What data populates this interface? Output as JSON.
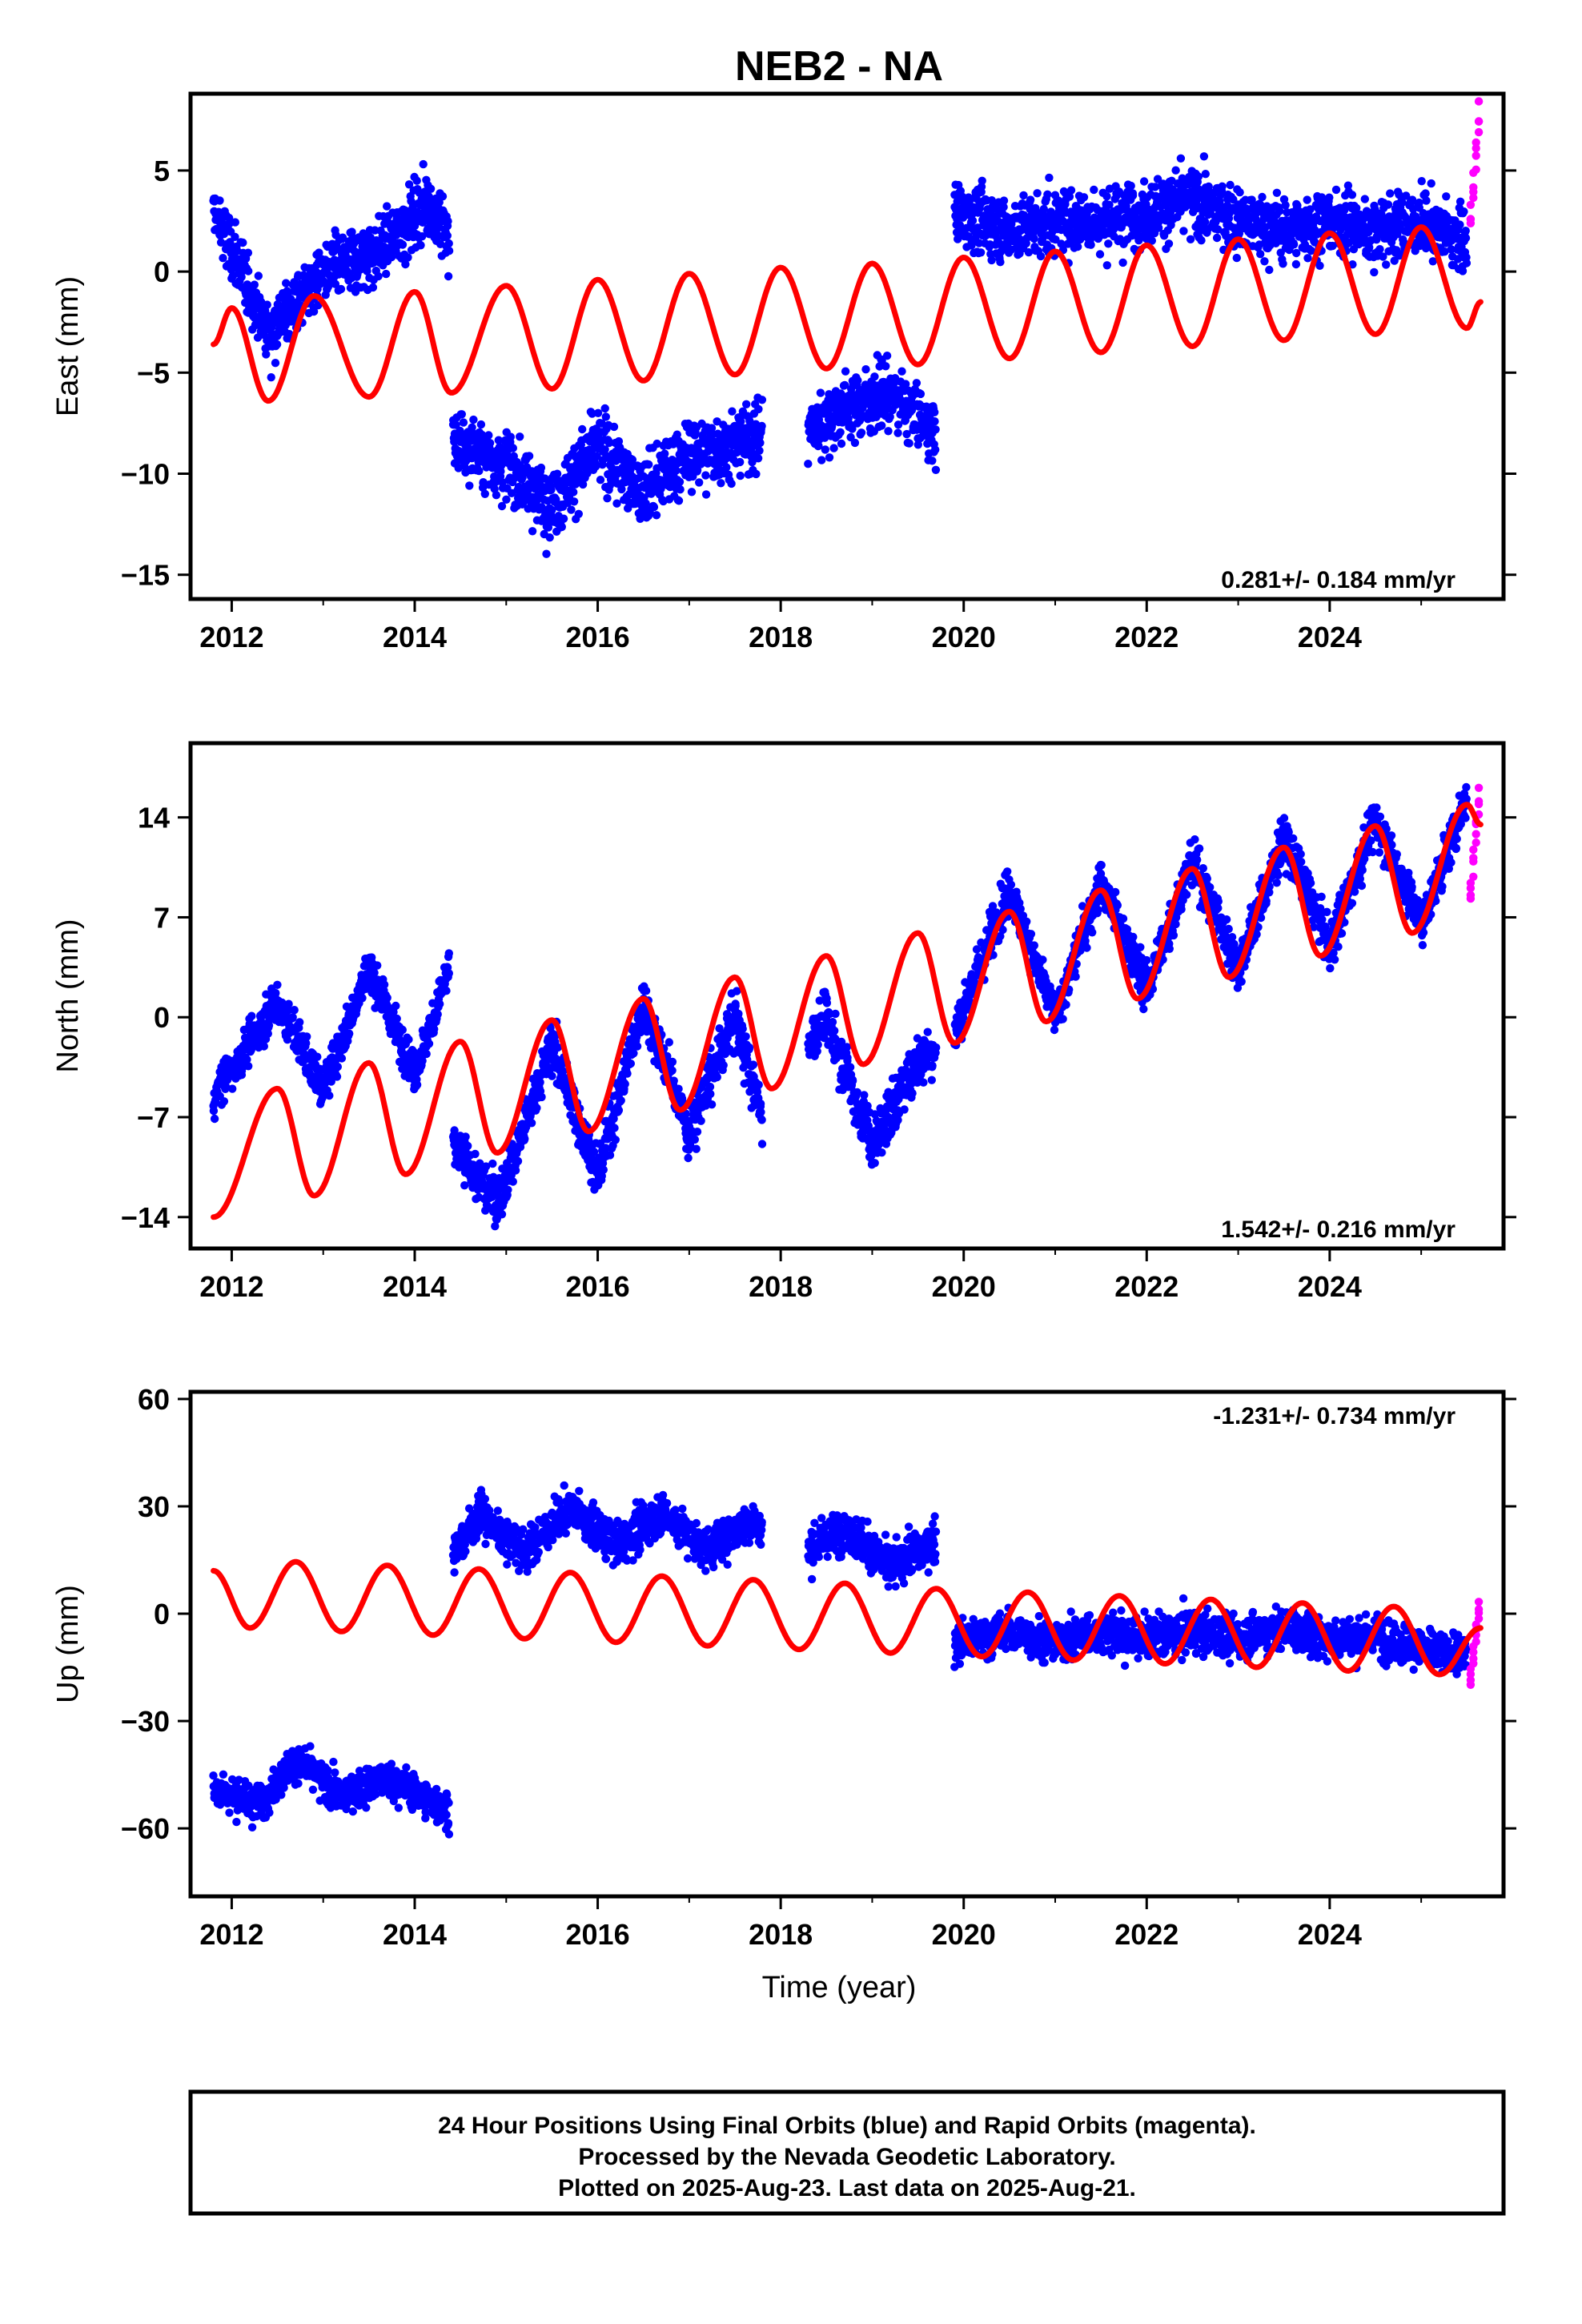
{
  "title": "NEB2 - NA",
  "footer": {
    "lines": [
      "24 Hour Positions Using Final Orbits (blue) and Rapid Orbits (magenta).",
      "Processed by the Nevada Geodetic Laboratory.",
      "Plotted on 2025-Aug-23. Last data on 2025-Aug-21."
    ]
  },
  "colors": {
    "final_orbits": "#0000ff",
    "rapid_orbits": "#ff00ff",
    "model_fit": "#ff0000",
    "frame": "#000000"
  },
  "chart_data": [
    {
      "type": "scatter",
      "component": "east",
      "ylabel": "East (mm)",
      "xlabel": "",
      "xlim": [
        2011.55,
        2025.9
      ],
      "ylim": [
        -16.2,
        8.8
      ],
      "x_ticks": [
        "2012",
        "2014",
        "2016",
        "2018",
        "2020",
        "2022",
        "2024"
      ],
      "y_ticks": [
        "5",
        "0",
        "-5",
        "-10",
        "-15"
      ],
      "rate_text": "0.281+/- 0.184 mm/yr",
      "rate_position": "bottom-right",
      "grid": false,
      "data_span": [
        2011.8,
        2025.63
      ],
      "series": [
        {
          "role": "final_orbits_segment",
          "x": [
            2011.8,
            2012.4,
            2013.0,
            2013.6,
            2014.15,
            2014.38
          ],
          "y": [
            3.0,
            -3.0,
            0.0,
            1.0,
            3.5,
            1.5
          ],
          "seasonal_amplitude": 2.5,
          "scatter": 1.1
        },
        {
          "role": "final_orbits_segment",
          "x": [
            2014.42,
            2015.0,
            2015.5,
            2016.0,
            2016.5,
            2017.0,
            2017.5,
            2017.8
          ],
          "y": [
            -8.5,
            -9.5,
            -11.5,
            -8.5,
            -11.0,
            -9.0,
            -8.5,
            -8.0
          ],
          "seasonal_amplitude": 1.6,
          "scatter": 1.2
        },
        {
          "role": "final_orbits_segment",
          "x": [
            2018.3,
            2018.8,
            2019.2,
            2019.7
          ],
          "y": [
            -7.8,
            -6.5,
            -6.0,
            -8.0
          ],
          "seasonal_amplitude": 1.2,
          "scatter": 1.1
        },
        {
          "role": "final_orbits_segment",
          "x": [
            2019.9,
            2020.5,
            2021.0,
            2021.5,
            2022.0,
            2022.5,
            2023.0,
            2023.5,
            2024.0,
            2024.5,
            2025.0,
            2025.5
          ],
          "y": [
            3.0,
            2.0,
            2.5,
            2.5,
            3.0,
            3.5,
            2.5,
            2.0,
            2.5,
            2.0,
            2.5,
            1.5
          ],
          "seasonal_amplitude": 1.6,
          "scatter": 1.1
        },
        {
          "role": "rapid_orbits",
          "x": [
            2025.54,
            2025.57,
            2025.6,
            2025.63
          ],
          "y": [
            2.0,
            4.0,
            5.5,
            8.0
          ]
        },
        {
          "role": "model_fit",
          "x": [
            2011.8,
            2012.0,
            2012.4,
            2012.9,
            2013.5,
            2014.0,
            2014.4,
            2015.0,
            2015.5,
            2016.0,
            2016.5,
            2017.0,
            2017.5,
            2018.0,
            2018.5,
            2019.0,
            2019.5,
            2020.0,
            2020.5,
            2021.0,
            2021.5,
            2022.0,
            2022.5,
            2023.0,
            2023.5,
            2024.0,
            2024.5,
            2025.0,
            2025.5,
            2025.65
          ],
          "y": [
            -3.6,
            -1.8,
            -6.4,
            -1.2,
            -6.2,
            -1.0,
            -6.0,
            -0.7,
            -5.8,
            -0.4,
            -5.4,
            -0.1,
            -5.1,
            0.2,
            -4.8,
            0.4,
            -4.6,
            0.7,
            -4.3,
            1.0,
            -4.0,
            1.3,
            -3.7,
            1.6,
            -3.4,
            1.9,
            -3.1,
            2.2,
            -2.8,
            -1.5
          ],
          "amplitude": 2.9
        }
      ]
    },
    {
      "type": "scatter",
      "component": "north",
      "ylabel": "North (mm)",
      "xlabel": "",
      "xlim": [
        2011.55,
        2025.9
      ],
      "ylim": [
        -16.2,
        19.2
      ],
      "x_ticks": [
        "2012",
        "2014",
        "2016",
        "2018",
        "2020",
        "2022",
        "2024"
      ],
      "y_ticks": [
        "14",
        "7",
        "0",
        "-7",
        "-14"
      ],
      "rate_text": "1.542+/- 0.216 mm/yr",
      "rate_position": "bottom-right",
      "grid": false,
      "data_span": [
        2011.8,
        2025.63
      ],
      "series": [
        {
          "role": "final_orbits_segment",
          "x": [
            2011.8,
            2012.5,
            2013.0,
            2013.5,
            2014.0,
            2014.38
          ],
          "y": [
            -5.5,
            1.0,
            -5.0,
            3.5,
            -4.0,
            3.5
          ],
          "seasonal_amplitude": 4.5,
          "scatter": 1.0
        },
        {
          "role": "final_orbits_segment",
          "x": [
            2014.42,
            2014.9,
            2015.5,
            2016.0,
            2016.5,
            2017.0,
            2017.5,
            2017.8
          ],
          "y": [
            -9.0,
            -13.0,
            -2.0,
            -11.0,
            1.0,
            -8.0,
            0.0,
            -7.0
          ],
          "seasonal_amplitude": 4.5,
          "scatter": 1.2
        },
        {
          "role": "final_orbits_segment",
          "x": [
            2018.3,
            2018.5,
            2019.0,
            2019.5,
            2019.7
          ],
          "y": [
            -2.0,
            0.0,
            -9.0,
            -3.0,
            -2.0
          ],
          "seasonal_amplitude": 4.5,
          "scatter": 1.3
        },
        {
          "role": "final_orbits_segment",
          "x": [
            2019.9,
            2020.5,
            2021.0,
            2021.5,
            2022.0,
            2022.5,
            2023.0,
            2023.5,
            2024.0,
            2024.5,
            2025.0,
            2025.5
          ],
          "y": [
            -1.0,
            9.0,
            0.0,
            9.5,
            2.0,
            11.0,
            3.5,
            12.5,
            5.0,
            14.0,
            6.5,
            15.5
          ],
          "seasonal_amplitude": 4.5,
          "scatter": 1.1
        },
        {
          "role": "rapid_orbits",
          "x": [
            2025.54,
            2025.57,
            2025.6,
            2025.63
          ],
          "y": [
            8.0,
            12.0,
            14.0,
            16.0
          ]
        },
        {
          "role": "model_fit",
          "x": [
            2011.8,
            2012.5,
            2012.9,
            2013.5,
            2013.9,
            2014.5,
            2014.9,
            2015.5,
            2015.9,
            2016.5,
            2016.9,
            2017.5,
            2017.9,
            2018.5,
            2018.9,
            2019.5,
            2019.9,
            2020.5,
            2020.9,
            2021.5,
            2021.9,
            2022.5,
            2022.9,
            2023.5,
            2023.9,
            2024.5,
            2024.9,
            2025.5,
            2025.65
          ],
          "y": [
            -14.0,
            -5.0,
            -12.5,
            -3.2,
            -11.0,
            -1.7,
            -9.5,
            -0.2,
            -8.0,
            1.3,
            -6.5,
            2.8,
            -5.0,
            4.3,
            -3.3,
            5.9,
            -1.8,
            7.4,
            -0.3,
            8.9,
            1.3,
            10.4,
            2.8,
            11.9,
            4.3,
            13.4,
            5.9,
            14.9,
            13.5
          ],
          "amplitude": 4.0
        }
      ]
    },
    {
      "type": "scatter",
      "component": "up",
      "ylabel": "Up (mm)",
      "xlabel": "Time (year)",
      "xlim": [
        2011.55,
        2025.9
      ],
      "ylim": [
        -79.0,
        62.0
      ],
      "x_ticks": [
        "2012",
        "2014",
        "2016",
        "2018",
        "2020",
        "2022",
        "2024"
      ],
      "y_ticks": [
        "60",
        "30",
        "0",
        "-30",
        "-60"
      ],
      "rate_text": "-1.231+/- 0.734 mm/yr",
      "rate_position": "top-right",
      "grid": false,
      "data_span": [
        2011.8,
        2025.63
      ],
      "series": [
        {
          "role": "final_orbits_segment",
          "x": [
            2011.8,
            2012.3,
            2012.7,
            2013.2,
            2013.7,
            2014.38
          ],
          "y": [
            -49.0,
            -53.0,
            -41.0,
            -51.0,
            -46.0,
            -55.0
          ],
          "seasonal_amplitude": 3.0,
          "scatter": 3.5
        },
        {
          "role": "final_orbits_segment",
          "x": [
            2014.42,
            2014.7,
            2015.2,
            2015.7,
            2016.2,
            2016.7,
            2017.2,
            2017.7,
            2017.8
          ],
          "y": [
            16.0,
            28.0,
            17.0,
            30.0,
            19.0,
            28.0,
            18.0,
            26.0,
            22.0
          ],
          "seasonal_amplitude": 4.0,
          "scatter": 4.0
        },
        {
          "role": "final_orbits_segment",
          "x": [
            2018.3,
            2018.7,
            2019.2,
            2019.7
          ],
          "y": [
            18.0,
            24.0,
            13.0,
            20.0
          ],
          "seasonal_amplitude": 4.0,
          "scatter": 4.0
        },
        {
          "role": "final_orbits_segment",
          "x": [
            2019.9,
            2020.5,
            2021.0,
            2021.5,
            2022.0,
            2022.5,
            2023.0,
            2023.5,
            2024.0,
            2024.5,
            2025.0,
            2025.5
          ],
          "y": [
            -8.0,
            -5.0,
            -8.0,
            -5.0,
            -7.0,
            -5.0,
            -7.0,
            -4.0,
            -7.0,
            -6.0,
            -10.0,
            -12.0
          ],
          "seasonal_amplitude": 7.0,
          "scatter": 4.0
        },
        {
          "role": "rapid_orbits",
          "x": [
            2025.54,
            2025.57,
            2025.6,
            2025.63
          ],
          "y": [
            -20.0,
            -12.0,
            -5.0,
            3.0
          ]
        },
        {
          "role": "model_fit",
          "x": [
            2011.8,
            2012.2,
            2012.7,
            2013.2,
            2013.7,
            2014.2,
            2014.7,
            2015.2,
            2015.7,
            2016.2,
            2016.7,
            2017.2,
            2017.7,
            2018.2,
            2018.7,
            2019.2,
            2019.7,
            2020.2,
            2020.7,
            2021.2,
            2021.7,
            2022.2,
            2022.7,
            2023.2,
            2023.7,
            2024.2,
            2024.7,
            2025.2,
            2025.65
          ],
          "y": [
            12.0,
            -4.0,
            14.5,
            -5.0,
            13.5,
            -6.0,
            12.5,
            -7.0,
            11.5,
            -8.0,
            10.5,
            -9.0,
            9.5,
            -10.0,
            8.5,
            -11.0,
            7.0,
            -12.0,
            6.0,
            -13.0,
            5.0,
            -14.0,
            4.0,
            -15.0,
            3.0,
            -16.0,
            2.0,
            -17.0,
            -4.0
          ],
          "amplitude": 9.5
        }
      ]
    }
  ]
}
